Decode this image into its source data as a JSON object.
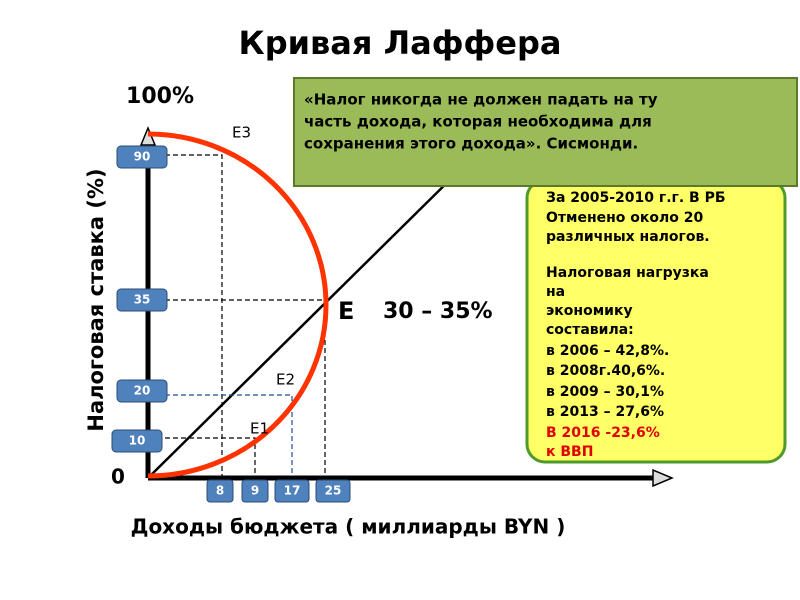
{
  "title": "Кривая Лаффера",
  "y_axis": {
    "top_label": "100%",
    "label": "Налоговая ставка (%)",
    "boxes": [
      "90",
      "35",
      "20",
      "10"
    ]
  },
  "x_axis": {
    "label": "Доходы бюджета ( миллиарды BYN )",
    "boxes": [
      "8",
      "9",
      "17",
      "25"
    ]
  },
  "origin": "0",
  "points": {
    "e3": "E3",
    "e2": "E2",
    "e1": "E1",
    "e": "E",
    "e_range": "30 – 35%"
  },
  "quote": {
    "lines": [
      "«Налог никогда не должен падать на ту",
      "часть дохода, которая необходима для",
      "сохранения этого дохода».  Сисмонди."
    ]
  },
  "note": {
    "lines": [
      "За 2005-2010 г.г.  В РБ",
      "Отменено около 20",
      "различных налогов."
    ],
    "burden_lines": [
      "Налоговая нагрузка",
      "на",
      "экономику",
      "составила:",
      "в 2006 – 42,8%.",
      "в 2008г.40,6%.",
      "в 2009 – 30,1%",
      "в 2013 – 27,6%"
    ],
    "red_lines": [
      "В 2016 -23,6%",
      "к ВВП"
    ]
  }
}
